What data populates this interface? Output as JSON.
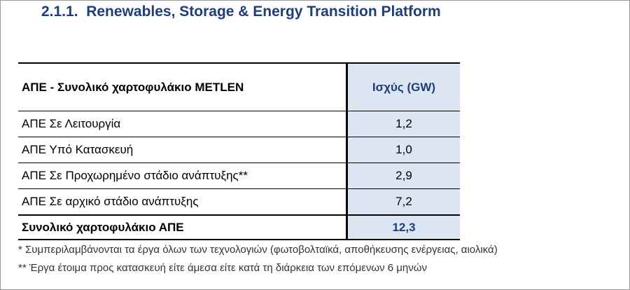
{
  "heading": "2.1.1.  Renewables, Storage & Energy Transition Platform",
  "table": {
    "header": [
      "ΑΠΕ - Συνολικό χαρτοφυλάκιο METLEN",
      "Ισχύς (GW)"
    ],
    "rows": [
      [
        "ΑΠΕ Σε Λειτουργία",
        "1,2"
      ],
      [
        "ΑΠΕ Υπό Κατασκευή",
        "1,0"
      ],
      [
        "ΑΠΕ Σε Προχωρημένο στάδιο ανάπτυξης**",
        "2,9"
      ],
      [
        "ΑΠΕ Σε αρχικό στάδιο ανάπτυξης",
        "7,2"
      ]
    ],
    "total": [
      "Συνολικό χαρτοφυλάκιο ΑΠΕ",
      "12,3"
    ]
  },
  "footnotes": [
    "* Συμπεριλαμβάνονται τα έργα όλων των τεχνολογιών (φωτοβολταϊκά, αποθήκευσης ενέργειας, αιολικά)",
    "** Έργα έτοιμα προς κατασκευή είτε άμεσα είτε κατά τη διάρκεια των επόμενων 6 μηνών"
  ]
}
